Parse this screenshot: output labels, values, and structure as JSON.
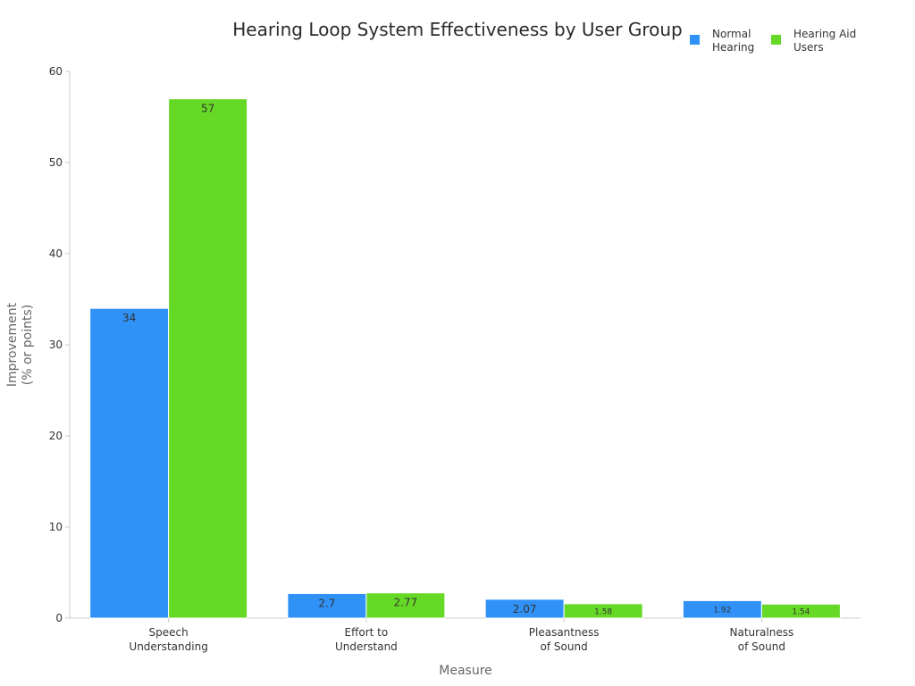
{
  "chart_data": {
    "type": "bar",
    "title": "Hearing Loop System Effectiveness by User Group",
    "xlabel": "Measure",
    "ylabel_lines": [
      "Improvement",
      "(% or points)"
    ],
    "categories": [
      [
        "Speech",
        "Understanding"
      ],
      [
        "Effort to",
        "Understand"
      ],
      [
        "Pleasantness",
        "of Sound"
      ],
      [
        "Naturalness",
        "of Sound"
      ]
    ],
    "series": [
      {
        "name": [
          "Normal",
          "Hearing"
        ],
        "color": "#3092f7",
        "values": [
          34,
          2.7,
          2.07,
          1.92
        ],
        "labels": [
          "34",
          "2.7",
          "2.07",
          "1.92"
        ]
      },
      {
        "name": [
          "Hearing Aid",
          "Users"
        ],
        "color": "#66d926",
        "values": [
          57,
          2.77,
          1.58,
          1.54
        ],
        "labels": [
          "57",
          "2.77",
          "1.58",
          "1.54"
        ]
      }
    ],
    "ylim": [
      0,
      60
    ],
    "yticks": [
      0,
      10,
      20,
      30,
      40,
      50,
      60
    ],
    "legend_position": "top-right",
    "grid": false
  }
}
